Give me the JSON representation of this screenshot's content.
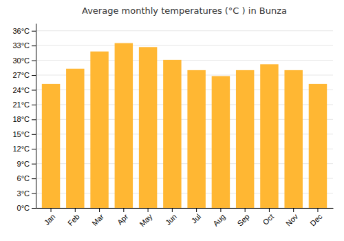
{
  "chart_data": {
    "type": "bar",
    "title": "Average monthly temperatures (°C ) in Bunza",
    "categories": [
      "Jan",
      "Feb",
      "Mar",
      "Apr",
      "May",
      "Jun",
      "Jul",
      "Aug",
      "Sep",
      "Oct",
      "Nov",
      "Dec"
    ],
    "values": [
      25.2,
      28.3,
      31.8,
      33.5,
      32.7,
      30.1,
      28.0,
      26.8,
      28.0,
      29.2,
      28.0,
      25.2
    ],
    "color": "#FFB733",
    "ylim": [
      0,
      37.5
    ],
    "yticks": [
      {
        "value": 0,
        "label": "0°C"
      },
      {
        "value": 3,
        "label": "3°C"
      },
      {
        "value": 6,
        "label": "6°C"
      },
      {
        "value": 9,
        "label": "9°C"
      },
      {
        "value": 12,
        "label": "12°C"
      },
      {
        "value": 15,
        "label": "15°C"
      },
      {
        "value": 18,
        "label": "18°C"
      },
      {
        "value": 21,
        "label": "21°C"
      },
      {
        "value": 24,
        "label": "24°C"
      },
      {
        "value": 27,
        "label": "27°C"
      },
      {
        "value": 30,
        "label": "30°C"
      },
      {
        "value": 33,
        "label": "33°C"
      },
      {
        "value": 36,
        "label": "36°C"
      }
    ],
    "grid": true
  }
}
